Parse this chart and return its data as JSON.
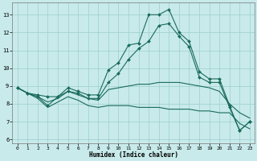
{
  "title": "",
  "xlabel": "Humidex (Indice chaleur)",
  "xlim": [
    -0.5,
    23.5
  ],
  "ylim": [
    5.8,
    13.7
  ],
  "yticks": [
    6,
    7,
    8,
    9,
    10,
    11,
    12,
    13
  ],
  "xticks": [
    0,
    1,
    2,
    3,
    4,
    5,
    6,
    7,
    8,
    9,
    10,
    11,
    12,
    13,
    14,
    15,
    16,
    17,
    18,
    19,
    20,
    21,
    22,
    23
  ],
  "bg_color": "#c8eaea",
  "grid_color": "#9ecece",
  "line_color": "#1a6b5a",
  "lines": [
    {
      "x": [
        0,
        1,
        2,
        3,
        4,
        5,
        6,
        7,
        8,
        9,
        10,
        11,
        12,
        13,
        14,
        15,
        16,
        17,
        18,
        19,
        20,
        21,
        22,
        23
      ],
      "y": [
        8.9,
        8.6,
        8.4,
        7.9,
        8.4,
        8.9,
        8.7,
        8.5,
        8.5,
        9.9,
        10.3,
        11.3,
        11.4,
        13.0,
        13.0,
        13.3,
        12.0,
        11.5,
        9.8,
        9.4,
        9.4,
        7.9,
        6.5,
        7.0
      ],
      "marker": "D",
      "markersize": 2.0
    },
    {
      "x": [
        0,
        1,
        2,
        3,
        4,
        5,
        6,
        7,
        8,
        9,
        10,
        11,
        12,
        13,
        14,
        15,
        16,
        17,
        18,
        19,
        20,
        21,
        22,
        23
      ],
      "y": [
        8.9,
        8.6,
        8.5,
        8.4,
        8.4,
        8.7,
        8.6,
        8.3,
        8.3,
        9.2,
        9.7,
        10.5,
        11.1,
        11.5,
        12.4,
        12.5,
        11.8,
        11.2,
        9.5,
        9.2,
        9.2,
        7.8,
        6.5,
        7.0
      ],
      "marker": "D",
      "markersize": 2.0
    },
    {
      "x": [
        0,
        1,
        2,
        3,
        4,
        5,
        6,
        7,
        8,
        9,
        10,
        11,
        12,
        13,
        14,
        15,
        16,
        17,
        18,
        19,
        20,
        21,
        22,
        23
      ],
      "y": [
        8.9,
        8.6,
        8.4,
        8.1,
        8.3,
        8.7,
        8.5,
        8.3,
        8.2,
        8.8,
        8.9,
        9.0,
        9.1,
        9.1,
        9.2,
        9.2,
        9.2,
        9.1,
        9.0,
        8.9,
        8.7,
        8.0,
        7.5,
        7.2
      ],
      "marker": null,
      "markersize": 0
    },
    {
      "x": [
        0,
        1,
        2,
        3,
        4,
        5,
        6,
        7,
        8,
        9,
        10,
        11,
        12,
        13,
        14,
        15,
        16,
        17,
        18,
        19,
        20,
        21,
        22,
        23
      ],
      "y": [
        8.9,
        8.6,
        8.3,
        7.8,
        8.1,
        8.4,
        8.2,
        7.9,
        7.8,
        7.9,
        7.9,
        7.9,
        7.8,
        7.8,
        7.8,
        7.7,
        7.7,
        7.7,
        7.6,
        7.6,
        7.5,
        7.5,
        6.9,
        6.6
      ],
      "marker": null,
      "markersize": 0
    }
  ]
}
